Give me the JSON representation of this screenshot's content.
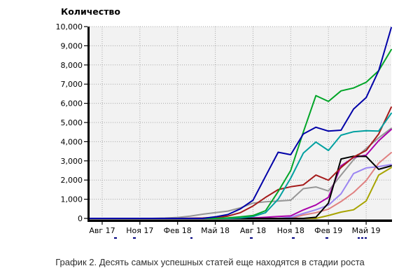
{
  "chart": {
    "title": "Количество",
    "caption": "График 2. Десять самых успешных статей еще находятся в стадии роста",
    "plot_bg": "#f2f2f2",
    "grid_color": "#a8a8a8",
    "axis_color": "#000000",
    "tick_label_color": "#000000",
    "clipped_legend_marks": {
      "color": "#000080",
      "items": [
        [
          163,
          4
        ],
        [
          190,
          4
        ],
        [
          272,
          3
        ],
        [
          357,
          4
        ],
        [
          417,
          4
        ],
        [
          465,
          4
        ],
        [
          511,
          3
        ],
        [
          516,
          3
        ],
        [
          521,
          3
        ]
      ]
    }
  },
  "chart_data": {
    "type": "line",
    "title": "Количество",
    "xlabel": "",
    "ylabel": "Количество",
    "grid": "dotted",
    "legend_position": "clipped-below-axis",
    "ylim": [
      0,
      10000
    ],
    "n_points": 25,
    "y_tick_labels": [
      "0",
      "1,000",
      "2,000",
      "3,000",
      "4,000",
      "5,000",
      "6,000",
      "7,000",
      "8,000",
      "9,000",
      "10,000"
    ],
    "y_tick_values": [
      0,
      1000,
      2000,
      3000,
      4000,
      5000,
      6000,
      7000,
      8000,
      9000,
      10000
    ],
    "x_tick_labels": [
      "Авг 17",
      "Ноя 17",
      "Фев 18",
      "Май 18",
      "Авг 18",
      "Ноя 18",
      "Фев 19",
      "Май 19"
    ],
    "x_tick_point_indices": [
      1,
      4,
      7,
      10,
      13,
      16,
      19,
      22
    ],
    "series": [
      {
        "name": "gray",
        "color": "#969696",
        "values": [
          0,
          0,
          0,
          0,
          0,
          0,
          20,
          50,
          120,
          220,
          300,
          380,
          550,
          800,
          870,
          900,
          950,
          1550,
          1640,
          1430,
          2260,
          3060,
          3650,
          4200,
          4700
        ]
      },
      {
        "name": "olive",
        "color": "#a8a400",
        "values": [
          0,
          0,
          0,
          0,
          0,
          0,
          0,
          0,
          0,
          0,
          0,
          0,
          0,
          0,
          0,
          0,
          0,
          0,
          0,
          150,
          330,
          450,
          910,
          2260,
          2650
        ]
      },
      {
        "name": "salmon",
        "color": "#e08080",
        "values": [
          0,
          0,
          0,
          0,
          0,
          0,
          0,
          0,
          0,
          0,
          0,
          0,
          0,
          0,
          0,
          0,
          0,
          180,
          300,
          480,
          880,
          1350,
          1970,
          2880,
          3430
        ]
      },
      {
        "name": "periwinkle",
        "color": "#9b85f2",
        "values": [
          0,
          0,
          0,
          0,
          0,
          0,
          0,
          0,
          0,
          0,
          0,
          0,
          0,
          0,
          0,
          0,
          60,
          260,
          450,
          690,
          1280,
          2340,
          2630,
          2700,
          2810
        ]
      },
      {
        "name": "magenta",
        "color": "#aa00aa",
        "values": [
          0,
          0,
          0,
          0,
          0,
          0,
          0,
          0,
          0,
          0,
          0,
          0,
          0,
          30,
          60,
          100,
          130,
          440,
          700,
          1100,
          2740,
          3180,
          3300,
          4050,
          4640
        ]
      },
      {
        "name": "black",
        "color": "#000000",
        "values": [
          0,
          0,
          0,
          0,
          0,
          0,
          0,
          0,
          0,
          0,
          0,
          0,
          0,
          0,
          0,
          0,
          0,
          0,
          60,
          800,
          3100,
          3240,
          3230,
          2560,
          2740
        ]
      },
      {
        "name": "dark-red",
        "color": "#a51b1b",
        "values": [
          0,
          0,
          0,
          0,
          0,
          0,
          0,
          0,
          10,
          20,
          50,
          120,
          300,
          650,
          1100,
          1500,
          1650,
          1750,
          2260,
          1990,
          2650,
          3200,
          3540,
          4400,
          5800
        ]
      },
      {
        "name": "teal",
        "color": "#00a0a0",
        "values": [
          0,
          0,
          0,
          0,
          0,
          0,
          0,
          0,
          0,
          0,
          0,
          0,
          30,
          100,
          300,
          1000,
          2100,
          3400,
          3980,
          3540,
          4340,
          4520,
          4570,
          4550,
          5480
        ]
      },
      {
        "name": "green",
        "color": "#00a527",
        "values": [
          0,
          0,
          0,
          0,
          0,
          0,
          0,
          0,
          0,
          0,
          0,
          30,
          80,
          150,
          400,
          1400,
          2500,
          4500,
          6400,
          6100,
          6650,
          6800,
          7100,
          7700,
          8800
        ]
      },
      {
        "name": "navy",
        "color": "#0000a8",
        "values": [
          0,
          0,
          0,
          0,
          0,
          0,
          0,
          0,
          0,
          0,
          80,
          200,
          500,
          950,
          2200,
          3450,
          3320,
          4400,
          4750,
          4550,
          4600,
          5700,
          6300,
          7700,
          9950
        ]
      }
    ]
  }
}
